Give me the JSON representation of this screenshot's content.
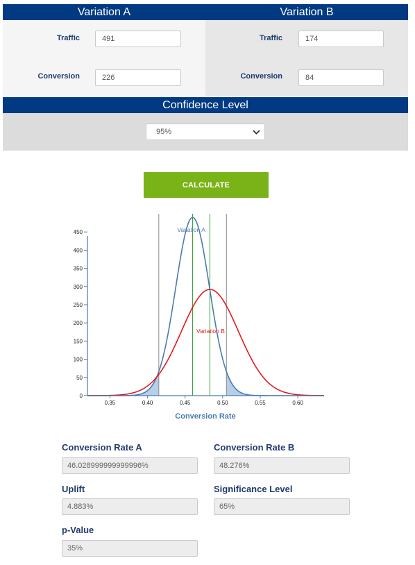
{
  "variation_a": {
    "title": "Variation A",
    "traffic_label": "Traffic",
    "traffic_value": "491",
    "conversion_label": "Conversion",
    "conversion_value": "226"
  },
  "variation_b": {
    "title": "Variation B",
    "traffic_label": "Traffic",
    "traffic_value": "174",
    "conversion_label": "Conversion",
    "conversion_value": "84"
  },
  "confidence": {
    "title": "Confidence Level",
    "selected": "95%"
  },
  "calculate_label": "CALCULATE",
  "chart_data": {
    "type": "line",
    "xlabel": "Conversion Rate",
    "ylabel": "",
    "xlim": [
      0.32,
      0.635
    ],
    "ylim": [
      0,
      500
    ],
    "x_ticks": [
      "0.35",
      "0.40",
      "0.45",
      "0.50",
      "0.55",
      "0.60"
    ],
    "y_ticks": [
      "0",
      "50",
      "100",
      "150",
      "200",
      "250",
      "300",
      "350",
      "400",
      "450"
    ],
    "series": [
      {
        "name": "Variation A",
        "mean": 0.46,
        "peak": 490,
        "sd": 0.0225,
        "color": "#4a7bb0"
      },
      {
        "name": "Variation B",
        "mean": 0.483,
        "peak": 292,
        "sd": 0.0379,
        "color": "#e41a1c"
      }
    ],
    "vlines_gray": [
      0.415,
      0.505
    ],
    "vlines_green": [
      0.46,
      0.483
    ],
    "shaded_regions": [
      [
        0.32,
        0.415
      ],
      [
        0.505,
        0.635
      ]
    ]
  },
  "results": {
    "conv_a_label": "Conversion Rate A",
    "conv_a_value": "46.028999999999996%",
    "conv_b_label": "Conversion Rate B",
    "conv_b_value": "48.276%",
    "uplift_label": "Uplift",
    "uplift_value": "4.883%",
    "sig_label": "Significance Level",
    "sig_value": "65%",
    "pvalue_label": "p-Value",
    "pvalue_value": "35%"
  }
}
